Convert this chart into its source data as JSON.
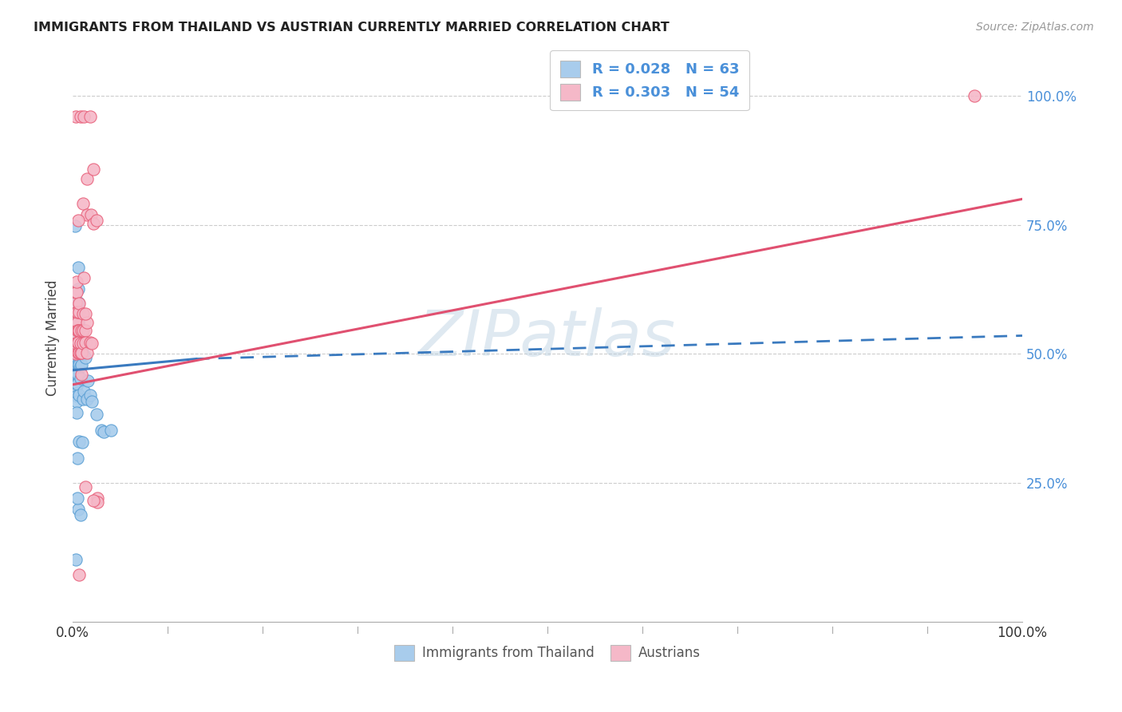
{
  "title": "IMMIGRANTS FROM THAILAND VS AUSTRIAN CURRENTLY MARRIED CORRELATION CHART",
  "source": "Source: ZipAtlas.com",
  "ylabel": "Currently Married",
  "ylabel_right_labels": [
    "100.0%",
    "75.0%",
    "50.0%",
    "25.0%"
  ],
  "ylabel_right_positions": [
    1.0,
    0.75,
    0.5,
    0.25
  ],
  "legend_r1": "R = 0.028",
  "legend_n1": "N = 63",
  "legend_r2": "R = 0.303",
  "legend_n2": "N = 54",
  "legend_label1": "Immigrants from Thailand",
  "legend_label2": "Austrians",
  "blue_color": "#a8ccec",
  "pink_color": "#f5b8c8",
  "blue_edge_color": "#5a9fd4",
  "pink_edge_color": "#e8607a",
  "blue_line_color": "#3a7abf",
  "pink_line_color": "#e05070",
  "blue_scatter": [
    [
      0.002,
      0.474
    ],
    [
      0.003,
      0.5
    ],
    [
      0.003,
      0.522
    ],
    [
      0.003,
      0.482
    ],
    [
      0.003,
      0.442
    ],
    [
      0.003,
      0.462
    ],
    [
      0.003,
      0.49
    ],
    [
      0.003,
      0.51
    ],
    [
      0.003,
      0.432
    ],
    [
      0.003,
      0.422
    ],
    [
      0.004,
      0.418
    ],
    [
      0.004,
      0.534
    ],
    [
      0.004,
      0.408
    ],
    [
      0.004,
      0.555
    ],
    [
      0.004,
      0.562
    ],
    [
      0.004,
      0.385
    ],
    [
      0.005,
      0.5
    ],
    [
      0.005,
      0.522
    ],
    [
      0.005,
      0.478
    ],
    [
      0.005,
      0.462
    ],
    [
      0.005,
      0.442
    ],
    [
      0.005,
      0.542
    ],
    [
      0.005,
      0.582
    ],
    [
      0.005,
      0.6
    ],
    [
      0.006,
      0.5
    ],
    [
      0.006,
      0.522
    ],
    [
      0.006,
      0.48
    ],
    [
      0.006,
      0.6
    ],
    [
      0.006,
      0.625
    ],
    [
      0.006,
      0.56
    ],
    [
      0.007,
      0.5
    ],
    [
      0.007,
      0.478
    ],
    [
      0.007,
      0.522
    ],
    [
      0.007,
      0.42
    ],
    [
      0.008,
      0.5
    ],
    [
      0.008,
      0.475
    ],
    [
      0.008,
      0.53
    ],
    [
      0.008,
      0.452
    ],
    [
      0.009,
      0.5
    ],
    [
      0.009,
      0.478
    ],
    [
      0.01,
      0.5
    ],
    [
      0.01,
      0.515
    ],
    [
      0.011,
      0.5
    ],
    [
      0.011,
      0.412
    ],
    [
      0.012,
      0.428
    ],
    [
      0.013,
      0.492
    ],
    [
      0.015,
      0.412
    ],
    [
      0.016,
      0.448
    ],
    [
      0.018,
      0.42
    ],
    [
      0.02,
      0.408
    ],
    [
      0.025,
      0.382
    ],
    [
      0.006,
      0.198
    ],
    [
      0.008,
      0.188
    ],
    [
      0.003,
      0.1
    ],
    [
      0.005,
      0.298
    ],
    [
      0.03,
      0.352
    ],
    [
      0.033,
      0.348
    ],
    [
      0.04,
      0.352
    ],
    [
      0.006,
      0.668
    ],
    [
      0.002,
      0.748
    ],
    [
      0.005,
      0.22
    ],
    [
      0.007,
      0.33
    ],
    [
      0.01,
      0.328
    ]
  ],
  "pink_scatter": [
    [
      0.003,
      0.96
    ],
    [
      0.008,
      0.96
    ],
    [
      0.012,
      0.96
    ],
    [
      0.018,
      0.96
    ],
    [
      0.003,
      0.5
    ],
    [
      0.003,
      0.52
    ],
    [
      0.003,
      0.54
    ],
    [
      0.003,
      0.6
    ],
    [
      0.003,
      0.62
    ],
    [
      0.004,
      0.62
    ],
    [
      0.004,
      0.64
    ],
    [
      0.004,
      0.562
    ],
    [
      0.004,
      0.58
    ],
    [
      0.005,
      0.56
    ],
    [
      0.005,
      0.545
    ],
    [
      0.005,
      0.58
    ],
    [
      0.005,
      0.522
    ],
    [
      0.006,
      0.545
    ],
    [
      0.006,
      0.502
    ],
    [
      0.006,
      0.522
    ],
    [
      0.007,
      0.545
    ],
    [
      0.007,
      0.502
    ],
    [
      0.007,
      0.58
    ],
    [
      0.007,
      0.598
    ],
    [
      0.008,
      0.502
    ],
    [
      0.008,
      0.52
    ],
    [
      0.009,
      0.502
    ],
    [
      0.009,
      0.545
    ],
    [
      0.011,
      0.52
    ],
    [
      0.011,
      0.578
    ],
    [
      0.011,
      0.545
    ],
    [
      0.013,
      0.545
    ],
    [
      0.013,
      0.522
    ],
    [
      0.015,
      0.56
    ],
    [
      0.015,
      0.502
    ],
    [
      0.018,
      0.522
    ],
    [
      0.011,
      0.792
    ],
    [
      0.015,
      0.77
    ],
    [
      0.019,
      0.77
    ],
    [
      0.022,
      0.752
    ],
    [
      0.025,
      0.758
    ],
    [
      0.015,
      0.84
    ],
    [
      0.022,
      0.858
    ],
    [
      0.013,
      0.578
    ],
    [
      0.012,
      0.648
    ],
    [
      0.006,
      0.758
    ],
    [
      0.02,
      0.52
    ],
    [
      0.026,
      0.22
    ],
    [
      0.013,
      0.242
    ],
    [
      0.026,
      0.212
    ],
    [
      0.022,
      0.215
    ],
    [
      0.009,
      0.46
    ],
    [
      0.007,
      0.072
    ],
    [
      0.95,
      1.0
    ]
  ],
  "blue_trendline_solid": [
    [
      0.0,
      0.468
    ],
    [
      0.13,
      0.49
    ]
  ],
  "blue_trendline_dash": [
    [
      0.13,
      0.49
    ],
    [
      1.0,
      0.535
    ]
  ],
  "pink_trendline": [
    [
      0.0,
      0.44
    ],
    [
      1.0,
      0.8
    ]
  ],
  "watermark": "ZIPatlas",
  "xlim": [
    0,
    1.0
  ],
  "ylim": [
    -0.02,
    1.08
  ],
  "xticklabels_left": "0.0%",
  "xticklabels_right": "100.0%"
}
